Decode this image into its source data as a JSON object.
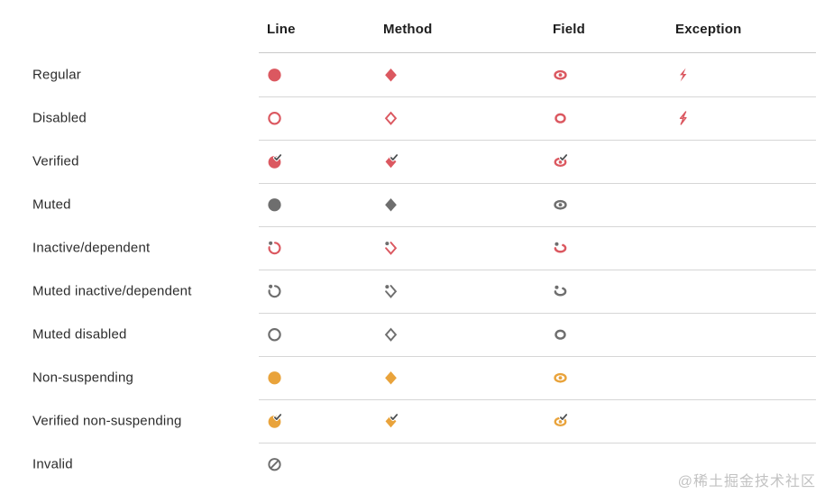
{
  "columns": [
    "Line",
    "Method",
    "Field",
    "Exception"
  ],
  "rows": [
    {
      "label": "Regular",
      "line": "circle-filled red",
      "method": "diamond-filled red",
      "field": "field-filled red",
      "exception": "bolt-filled red"
    },
    {
      "label": "Disabled",
      "line": "circle-outline red",
      "method": "diamond-outline red",
      "field": "field-outline red",
      "exception": "bolt-outline red"
    },
    {
      "label": "Verified",
      "line": "circle-verified red",
      "method": "diamond-verified red",
      "field": "field-verified red"
    },
    {
      "label": "Muted",
      "line": "circle-filled gray",
      "method": "diamond-filled gray",
      "field": "field-filled gray"
    },
    {
      "label": "Inactive/dependent",
      "line": "circle-inactive red",
      "method": "diamond-inactive red",
      "field": "field-inactive red"
    },
    {
      "label": "Muted inactive/dependent",
      "line": "circle-inactive gray",
      "method": "diamond-inactive gray",
      "field": "field-inactive gray"
    },
    {
      "label": "Muted disabled",
      "line": "circle-outline gray",
      "method": "diamond-outline gray",
      "field": "field-outline gray"
    },
    {
      "label": "Non-suspending",
      "line": "circle-filled yellow",
      "method": "diamond-filled yellow",
      "field": "field-filled yellow"
    },
    {
      "label": "Verified non-suspending",
      "line": "circle-verified yellow",
      "method": "diamond-verified yellow",
      "field": "field-verified yellow"
    },
    {
      "label": "Invalid",
      "line": "circle-invalid gray"
    }
  ],
  "colors": {
    "red": "#DB5860",
    "yellow": "#E9A33B",
    "gray": "#6E6E6E",
    "check": "#4C4F51",
    "separator": "#D6D6D6",
    "header_text": "#1D1D1D",
    "label_text": "#2C2C2C",
    "watermark_text": "#C2C2C2",
    "background": "#FFFFFF"
  },
  "watermark": "@稀土掘金技术社区"
}
